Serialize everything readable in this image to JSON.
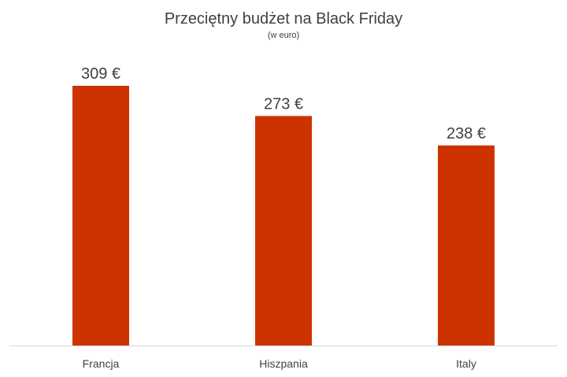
{
  "chart_data": {
    "type": "bar",
    "title": "Przeciętny budżet na Black Friday",
    "subtitle": "(w euro)",
    "categories": [
      "Francja",
      "Hiszpania",
      "Italy"
    ],
    "values": [
      309,
      273,
      238
    ],
    "data_labels": [
      "309 €",
      "273 €",
      "238 €"
    ],
    "ylim": [
      0,
      309
    ],
    "grid": false,
    "legend": "none",
    "bar_color": "#CC3300",
    "axis_color": "#D9D9D9",
    "text_color": "#404040"
  }
}
